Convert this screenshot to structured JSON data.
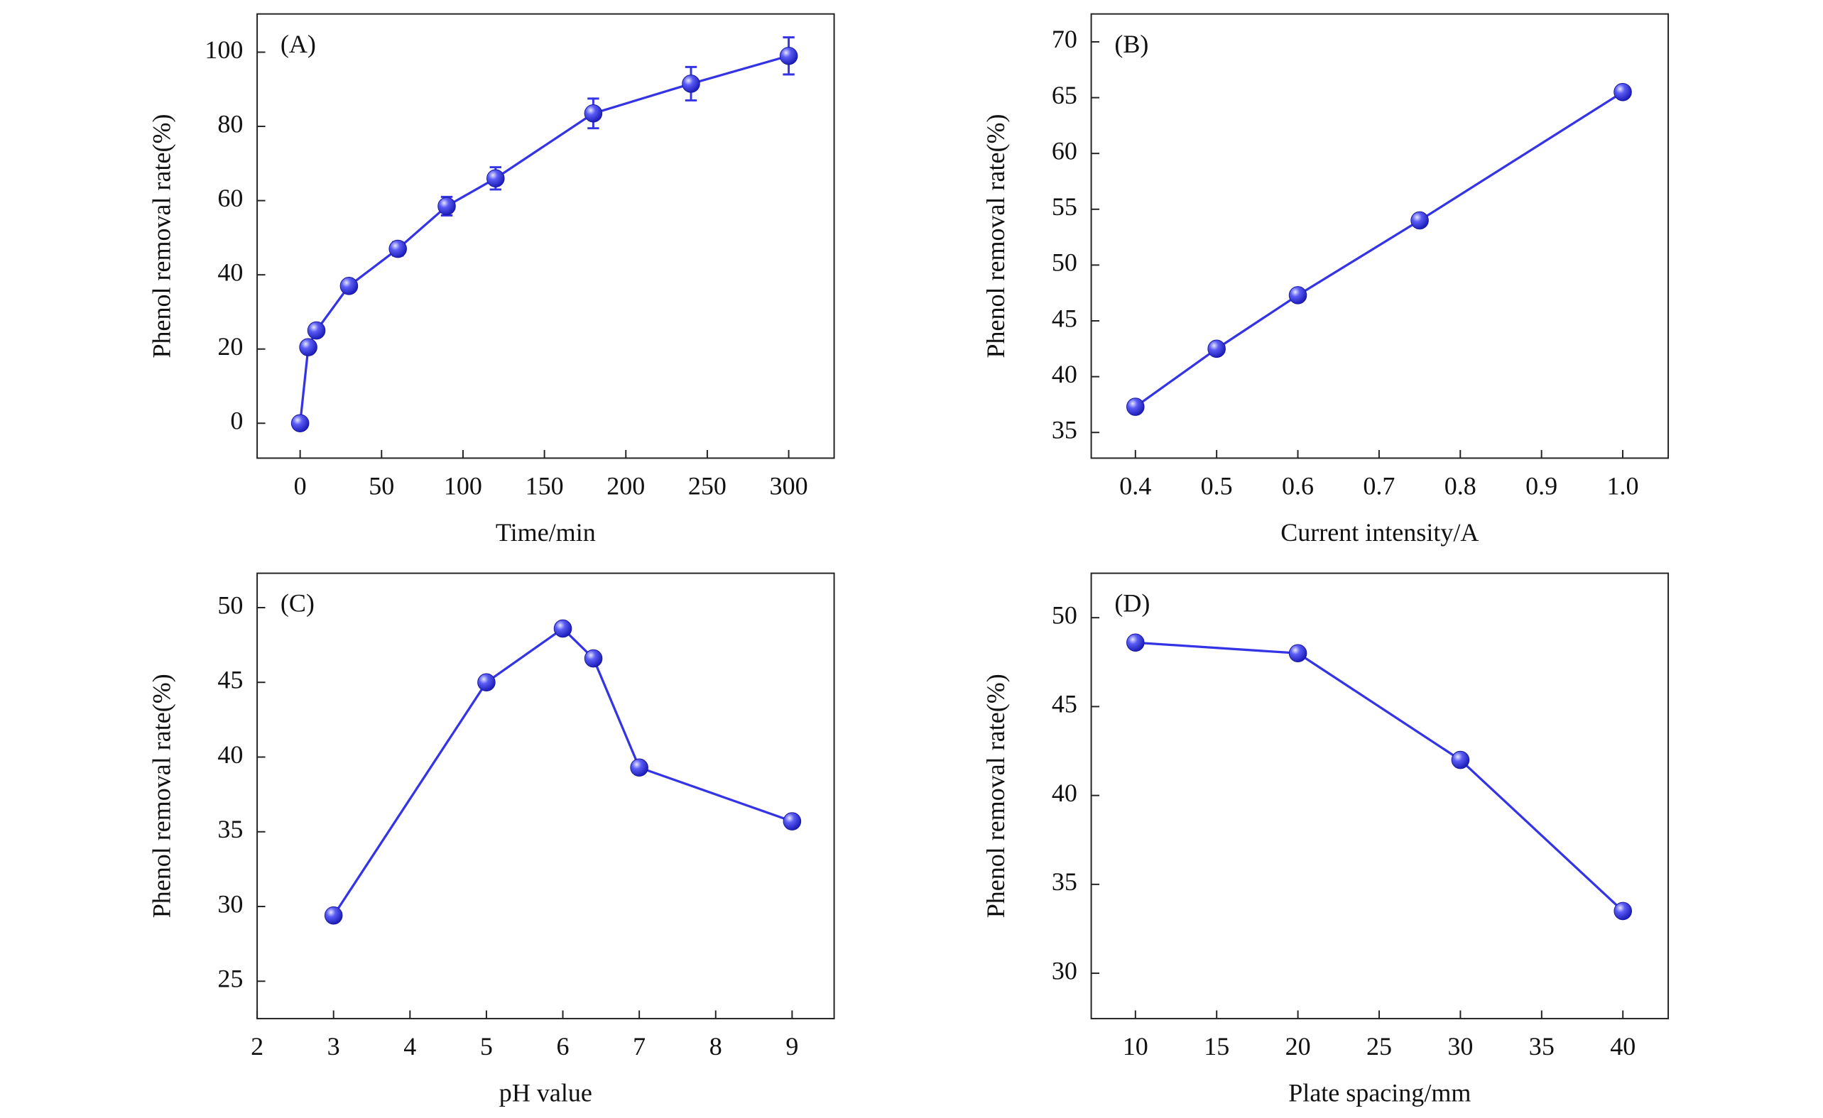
{
  "chart_data": [
    {
      "type": "line",
      "panel_label": "(A)",
      "xlabel": "Time/min",
      "ylabel": "Phenol removal rate(%)",
      "color": "#3434e6",
      "x": [
        0,
        5,
        10,
        30,
        60,
        90,
        120,
        180,
        240,
        300
      ],
      "values": [
        0,
        20.5,
        25,
        37,
        47,
        58.5,
        66,
        83.5,
        91.5,
        99
      ],
      "errors": [
        0.8,
        1.2,
        1.2,
        1.5,
        1.8,
        2.5,
        3,
        4,
        4.5,
        5
      ],
      "xlim": [
        -26.4,
        327.9
      ],
      "ylim": [
        -9.4,
        110.3
      ],
      "xticks": [
        0,
        50,
        100,
        150,
        200,
        250,
        300
      ],
      "yticks": [
        0,
        20,
        40,
        60,
        80,
        100
      ]
    },
    {
      "type": "line",
      "panel_label": "(B)",
      "xlabel": "Current intensity/A",
      "ylabel": "Phenol removal rate(%)",
      "color": "#3434e6",
      "x": [
        0.4,
        0.5,
        0.6,
        0.75,
        1.0
      ],
      "values": [
        37.3,
        42.5,
        47.3,
        54,
        65.5
      ],
      "xlim": [
        0.3456,
        1.056
      ],
      "ylim": [
        32.7,
        72.5
      ],
      "xticks": [
        0.4,
        0.5,
        0.6,
        0.7,
        0.8,
        0.9,
        {
          "value": 1.0,
          "label": "1.0"
        }
      ],
      "yticks": [
        35,
        40,
        45,
        50,
        55,
        60,
        65,
        70
      ]
    },
    {
      "type": "line",
      "panel_label": "(C)",
      "xlabel": "pH value",
      "ylabel": "Phenol removal rate(%)",
      "color": "#3434e6",
      "x": [
        3,
        5,
        6,
        6.4,
        7,
        9
      ],
      "values": [
        29.4,
        45,
        48.6,
        46.6,
        39.3,
        35.7
      ],
      "xlim": [
        2,
        9.55
      ],
      "ylim": [
        22.5,
        52.3
      ],
      "xticks": [
        2,
        3,
        4,
        5,
        6,
        7,
        8,
        9
      ],
      "yticks": [
        25,
        30,
        35,
        40,
        45,
        50
      ]
    },
    {
      "type": "line",
      "panel_label": "(D)",
      "xlabel": "Plate spacing/mm",
      "ylabel": "Phenol removal rate(%)",
      "color": "#3434e6",
      "x": [
        10,
        20,
        30,
        40
      ],
      "values": [
        48.6,
        48,
        42,
        33.5
      ],
      "xlim": [
        7.28,
        42.79
      ],
      "ylim": [
        27.45,
        52.5
      ],
      "xticks": [
        10,
        15,
        20,
        25,
        30,
        35,
        40
      ],
      "yticks": [
        30,
        35,
        40,
        45,
        50
      ]
    }
  ]
}
